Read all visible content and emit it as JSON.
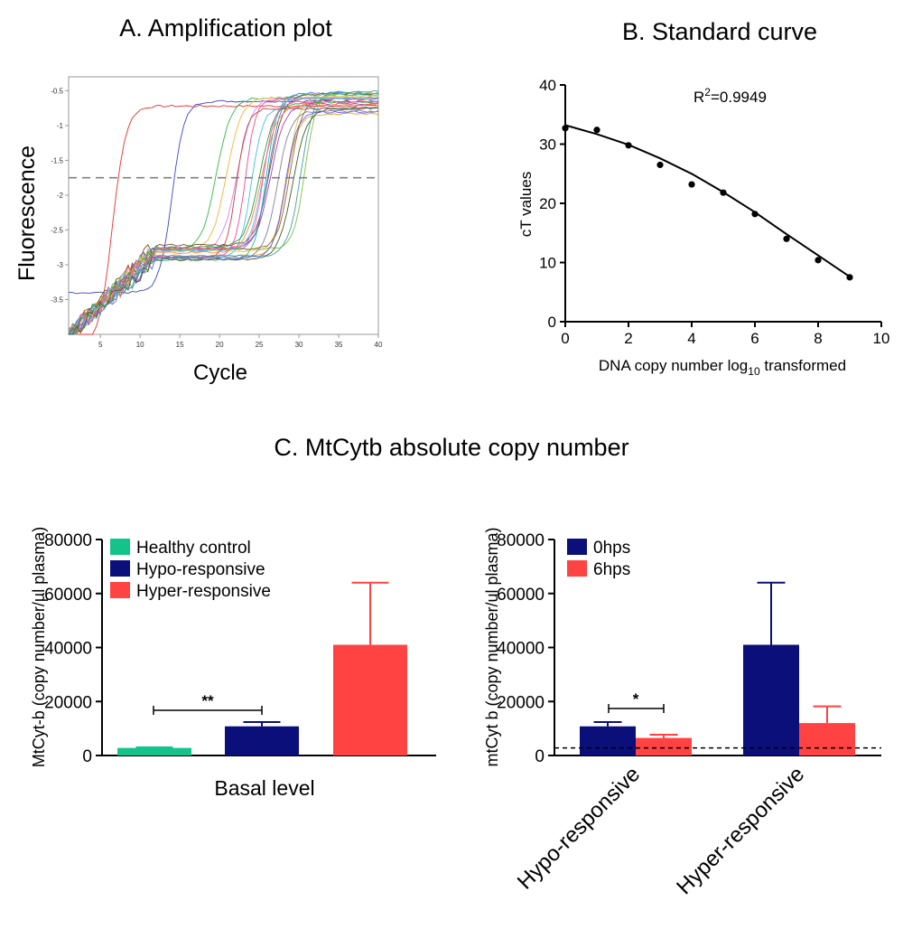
{
  "panel_a": {
    "title": "A. Amplification plot",
    "xlabel": "Cycle",
    "ylabel": "Fluorescence",
    "xticks": [
      "5",
      "10",
      "15",
      "20",
      "25",
      "30",
      "35",
      "40"
    ],
    "yticks": [
      "-0.5",
      "-1",
      "-1.5",
      "-2",
      "-2.5",
      "-3",
      "-3.5"
    ],
    "threshold": -1.75,
    "xlim": [
      1,
      40
    ],
    "ylim": [
      -4.0,
      -0.3
    ],
    "colors": [
      "#e8302a",
      "#3a46c8",
      "#33b84a",
      "#f0b43a",
      "#e080e8",
      "#40c0e8",
      "#e8a020",
      "#7a4a20",
      "#28b890",
      "#9a40c8",
      "#f04890",
      "#4878e0",
      "#80c040",
      "#c04040",
      "#40a0a0",
      "#d0d040",
      "#6060ff",
      "#ff8040",
      "#20a040",
      "#a06040",
      "#50c0ff",
      "#ff60a0",
      "#406020",
      "#8080a0"
    ]
  },
  "chart_data": [
    {
      "type": "scatter",
      "title": "B. Standard curve",
      "xlabel_parts": [
        "DNA copy number log",
        "10",
        " transformed"
      ],
      "ylabel": "cT values",
      "annotation_parts": [
        "R",
        "2",
        "=0.9949"
      ],
      "xlim": [
        0,
        10
      ],
      "ylim": [
        0,
        40
      ],
      "xticks": [
        0,
        2,
        4,
        6,
        8,
        10
      ],
      "yticks": [
        0,
        10,
        20,
        30,
        40
      ],
      "x": [
        0,
        1,
        2,
        3,
        4,
        5,
        6,
        7,
        8,
        9
      ],
      "y": [
        32.7,
        32.4,
        29.8,
        26.5,
        23.2,
        21.8,
        18.2,
        14.0,
        10.4,
        7.5
      ],
      "fit_curve": {
        "x": [
          0,
          1,
          2,
          3,
          4,
          5,
          6,
          7,
          8,
          9
        ],
        "y": [
          33.2,
          31.7,
          29.9,
          27.6,
          25.0,
          21.9,
          18.5,
          14.8,
          11.2,
          7.6
        ]
      }
    },
    {
      "type": "bar",
      "super_title": "C. MtCytb absolute copy number",
      "ylabel": "MtCyt-b (copy number/µl plasma)",
      "xlabel": "Basal level",
      "ylim": [
        0,
        80000
      ],
      "yticks": [
        "0",
        "20000",
        "40000",
        "60000",
        "80000"
      ],
      "series": [
        {
          "name": "Healthy control",
          "color": "#14c38a",
          "value": 2800,
          "error": 200
        },
        {
          "name": "Hypo-responsive",
          "color": "#0a0f7a",
          "value": 10800,
          "error": 1600
        },
        {
          "name": "Hyper-responsive",
          "color": "#ff4242",
          "value": 41000,
          "error": 23000
        }
      ],
      "significance": "**"
    },
    {
      "type": "bar",
      "ylabel": "mtCyt b (copy number/ul plasma)",
      "ylim": [
        0,
        80000
      ],
      "yticks": [
        "0",
        "20000",
        "40000",
        "60000",
        "80000"
      ],
      "categories": [
        "Hypo-responsive",
        "Hyper-responsive"
      ],
      "series": [
        {
          "name": "0hps",
          "color": "#0a0f7a",
          "values": [
            10800,
            41000
          ],
          "errors": [
            1600,
            23000
          ]
        },
        {
          "name": "6hps",
          "color": "#ff4242",
          "values": [
            6500,
            12000
          ],
          "errors": [
            1200,
            6200
          ]
        }
      ],
      "reference_line": 2800,
      "significance": "*"
    }
  ]
}
